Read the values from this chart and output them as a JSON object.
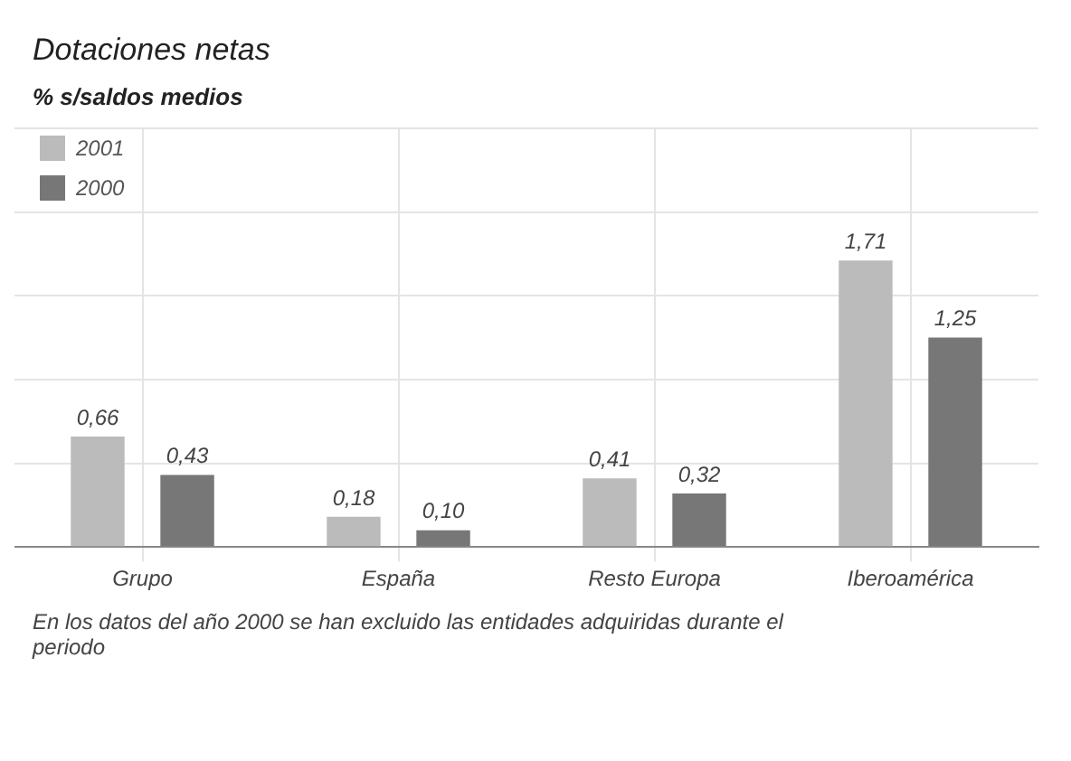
{
  "chart_data": {
    "type": "bar",
    "title": "Dotaciones netas",
    "subtitle": "% s/saldos medios",
    "categories": [
      "Grupo",
      "España",
      "Resto Europa",
      "Iberoamérica"
    ],
    "series": [
      {
        "name": "2001",
        "color": "#bbbbbb",
        "values": [
          0.66,
          0.18,
          0.41,
          1.71
        ],
        "value_labels": [
          "0,66",
          "0,18",
          "0,41",
          "1,71"
        ]
      },
      {
        "name": "2000",
        "color": "#777777",
        "values": [
          0.43,
          0.1,
          0.32,
          1.25
        ],
        "value_labels": [
          "0,43",
          "0,10",
          "0,32",
          "1,25"
        ]
      }
    ],
    "legend": "top left",
    "grid": true,
    "tick_labels": "x",
    "annotations": [
      "En los datos del año 2000 se han excluido las entidades adquiridas durante el periodo"
    ]
  }
}
